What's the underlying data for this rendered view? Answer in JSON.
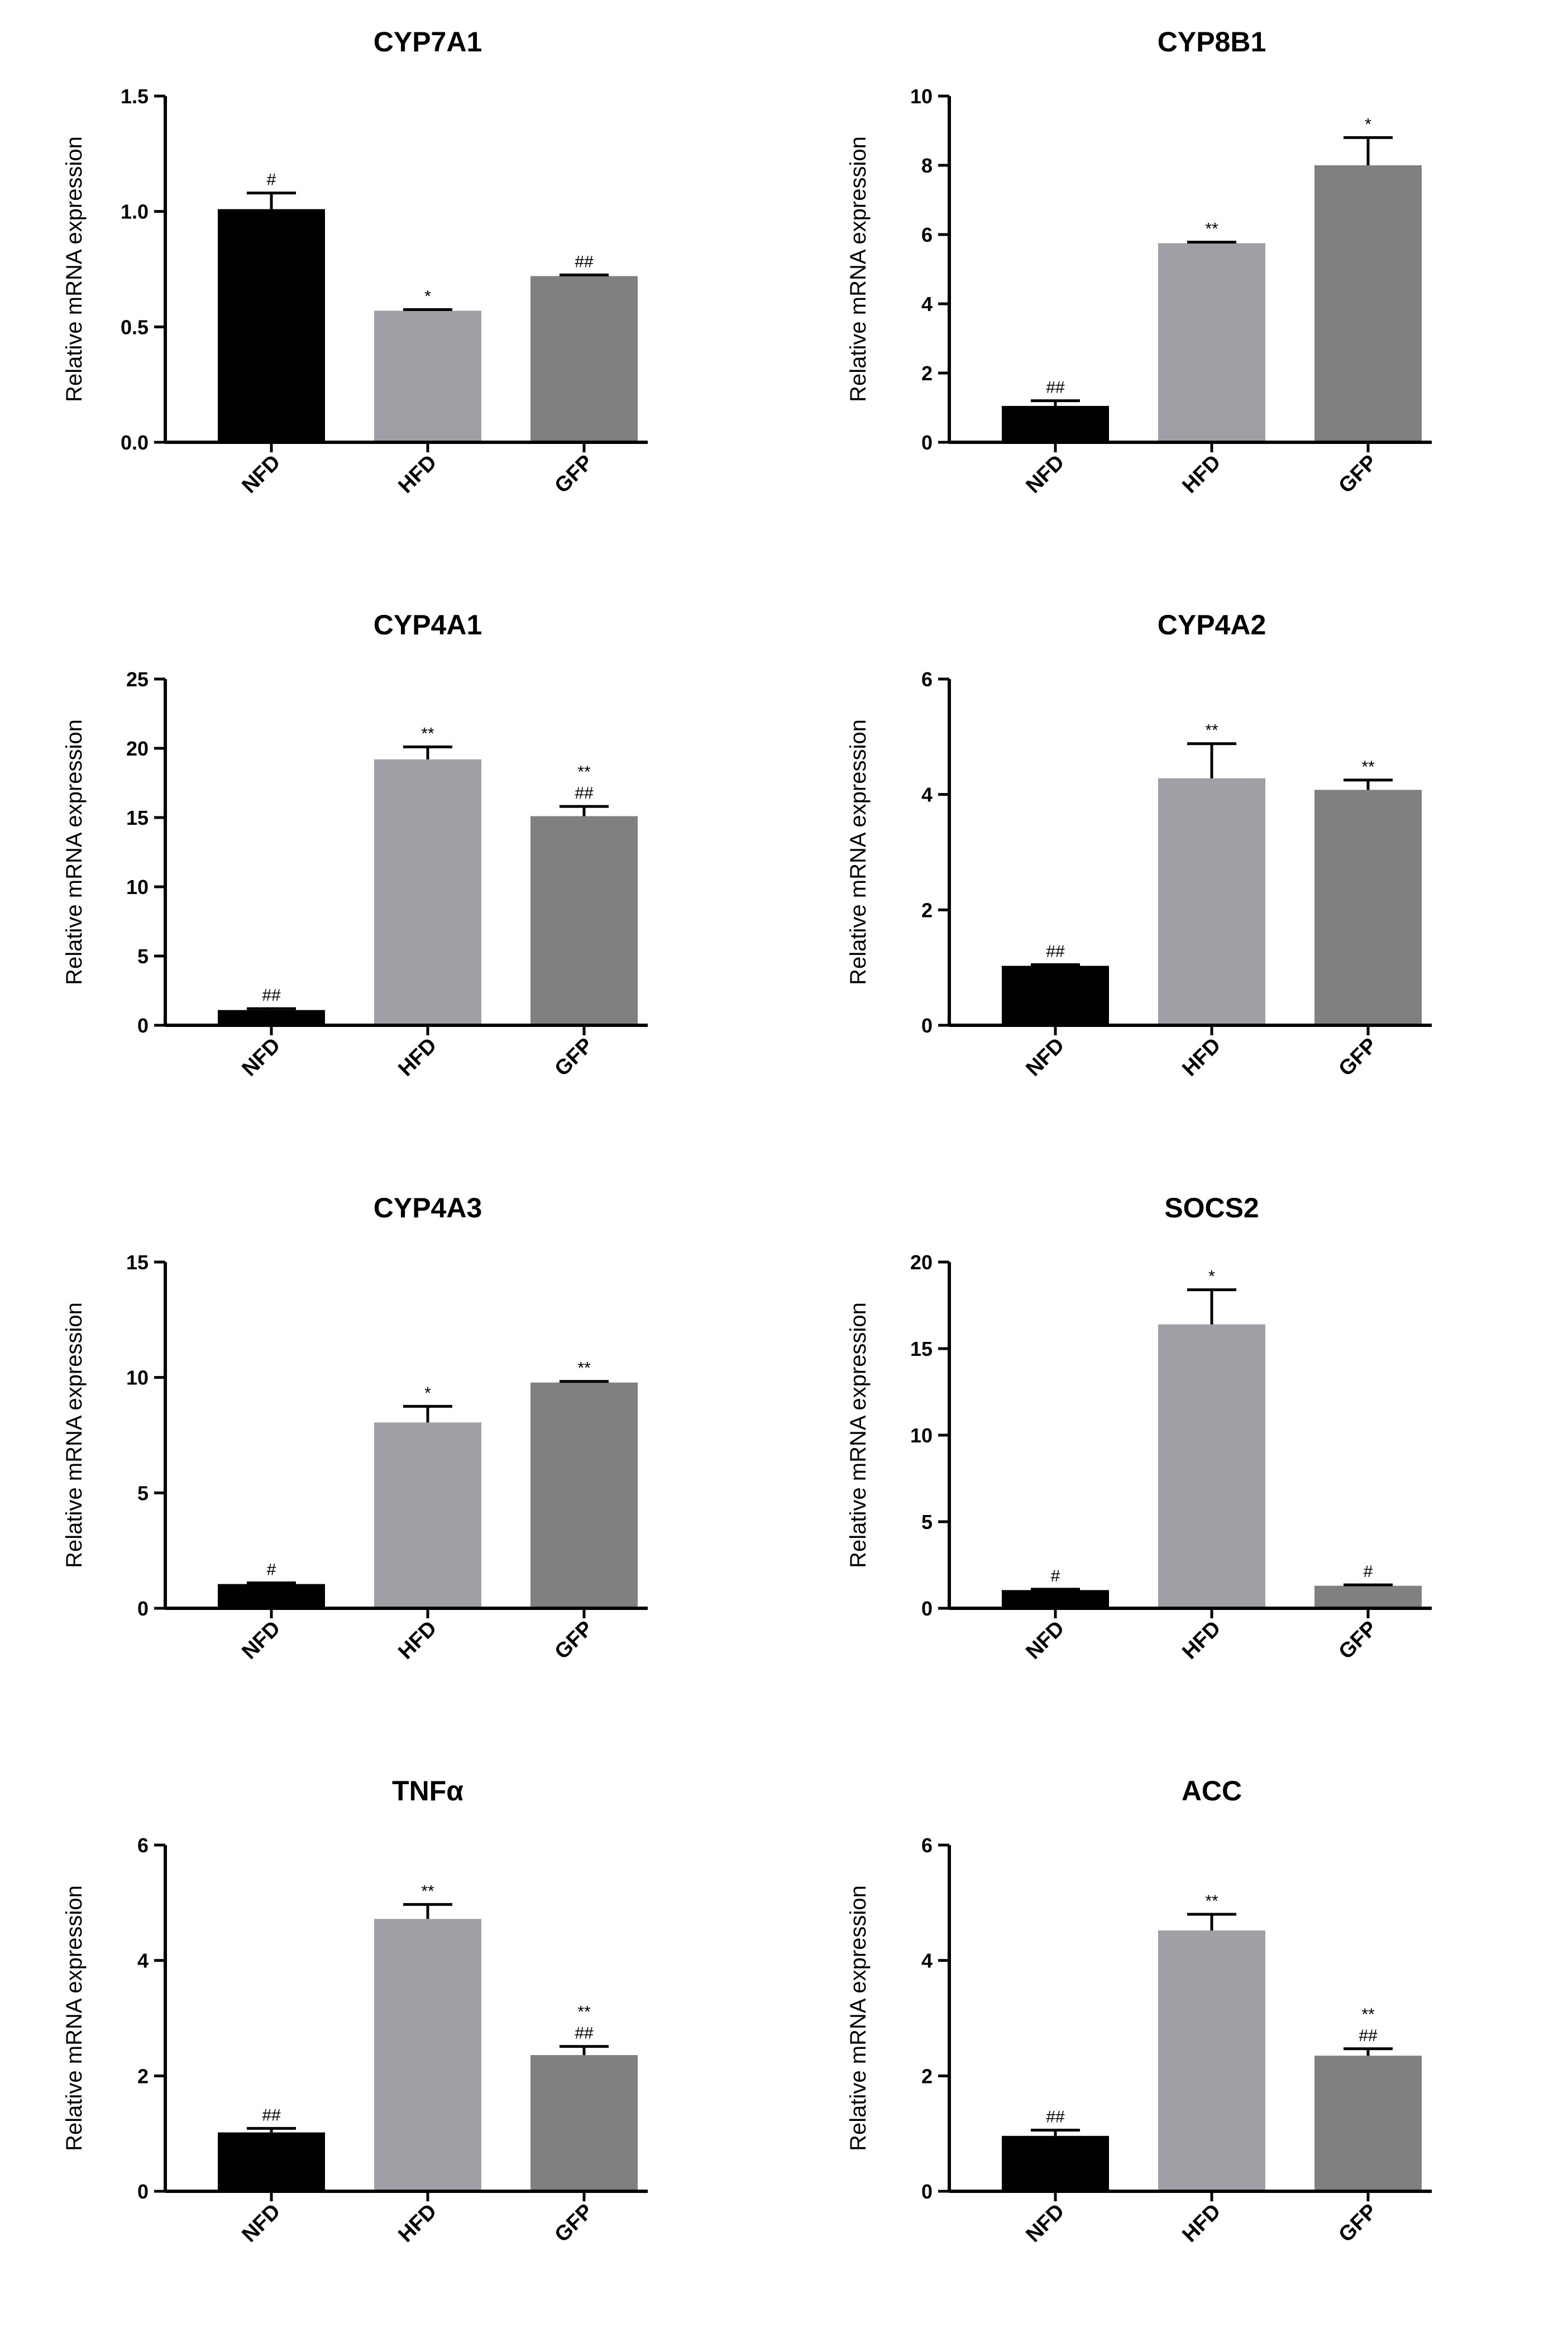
{
  "y_axis_label": "Relative mRNA expression",
  "colors": {
    "NFD": "#000000",
    "HFD": "#a09fa5",
    "GFP": "#808080"
  },
  "chart_data": [
    {
      "type": "bar",
      "title": "CYP7A1",
      "ylabel": "Relative mRNA expression",
      "categories": [
        "NFD",
        "HFD",
        "GFP"
      ],
      "values": [
        1.01,
        0.57,
        0.72
      ],
      "errors": [
        0.07,
        0.005,
        0.005
      ],
      "annotations": [
        [
          "#"
        ],
        [
          "*"
        ],
        [
          "##"
        ]
      ],
      "ylim": [
        0,
        1.5
      ],
      "ticks": [
        "0.0",
        "0.5",
        "1.0",
        "1.5"
      ]
    },
    {
      "type": "bar",
      "title": "CYP8B1",
      "ylabel": "Relative mRNA expression",
      "categories": [
        "NFD",
        "HFD",
        "GFP"
      ],
      "values": [
        1.05,
        5.75,
        8.0
      ],
      "errors": [
        0.15,
        0.03,
        0.8
      ],
      "annotations": [
        [
          "##"
        ],
        [
          "**"
        ],
        [
          "*"
        ]
      ],
      "ylim": [
        0,
        10
      ],
      "ticks": [
        "0",
        "2",
        "4",
        "6",
        "8",
        "10"
      ]
    },
    {
      "type": "bar",
      "title": "CYP4A1",
      "ylabel": "Relative mRNA expression",
      "categories": [
        "NFD",
        "HFD",
        "GFP"
      ],
      "values": [
        1.1,
        19.2,
        15.1
      ],
      "errors": [
        0.1,
        0.9,
        0.7
      ],
      "annotations": [
        [
          "##"
        ],
        [
          "**"
        ],
        [
          "**",
          "##"
        ]
      ],
      "ylim": [
        0,
        25
      ],
      "ticks": [
        "0",
        "5",
        "10",
        "15",
        "20",
        "25"
      ]
    },
    {
      "type": "bar",
      "title": "CYP4A2",
      "ylabel": "Relative mRNA expression",
      "categories": [
        "NFD",
        "HFD",
        "GFP"
      ],
      "values": [
        1.03,
        4.28,
        4.08
      ],
      "errors": [
        0.02,
        0.6,
        0.17
      ],
      "annotations": [
        [
          "##"
        ],
        [
          "**"
        ],
        [
          "**"
        ]
      ],
      "ylim": [
        0,
        6
      ],
      "ticks": [
        "0",
        "2",
        "4",
        "6"
      ]
    },
    {
      "type": "bar",
      "title": "CYP4A3",
      "ylabel": "Relative mRNA expression",
      "categories": [
        "NFD",
        "HFD",
        "GFP"
      ],
      "values": [
        1.05,
        8.05,
        9.78
      ],
      "errors": [
        0.05,
        0.7,
        0.05
      ],
      "annotations": [
        [
          "#"
        ],
        [
          "*"
        ],
        [
          "**"
        ]
      ],
      "ylim": [
        0,
        15
      ],
      "ticks": [
        "0",
        "5",
        "10",
        "15"
      ]
    },
    {
      "type": "bar",
      "title": "SOCS2",
      "ylabel": "Relative mRNA expression",
      "categories": [
        "NFD",
        "HFD",
        "GFP"
      ],
      "values": [
        1.05,
        16.4,
        1.3
      ],
      "errors": [
        0.05,
        2.0,
        0.05
      ],
      "annotations": [
        [
          "#"
        ],
        [
          "*"
        ],
        [
          "#"
        ]
      ],
      "ylim": [
        0,
        20
      ],
      "ticks": [
        "0",
        "5",
        "10",
        "15",
        "20"
      ]
    },
    {
      "type": "bar",
      "title": "TNFα",
      "ylabel": "Relative mRNA expression",
      "categories": [
        "NFD",
        "HFD",
        "GFP"
      ],
      "values": [
        1.02,
        4.72,
        2.36
      ],
      "errors": [
        0.07,
        0.25,
        0.15
      ],
      "annotations": [
        [
          "##"
        ],
        [
          "**"
        ],
        [
          "**",
          "##"
        ]
      ],
      "ylim": [
        0,
        6
      ],
      "ticks": [
        "0",
        "2",
        "4",
        "6"
      ]
    },
    {
      "type": "bar",
      "title": "ACC",
      "ylabel": "Relative mRNA expression",
      "categories": [
        "NFD",
        "HFD",
        "GFP"
      ],
      "values": [
        0.96,
        4.52,
        2.35
      ],
      "errors": [
        0.1,
        0.28,
        0.12
      ],
      "annotations": [
        [
          "##"
        ],
        [
          "**"
        ],
        [
          "**",
          "##"
        ]
      ],
      "ylim": [
        0,
        6
      ],
      "ticks": [
        "0",
        "2",
        "4",
        "6"
      ]
    }
  ]
}
